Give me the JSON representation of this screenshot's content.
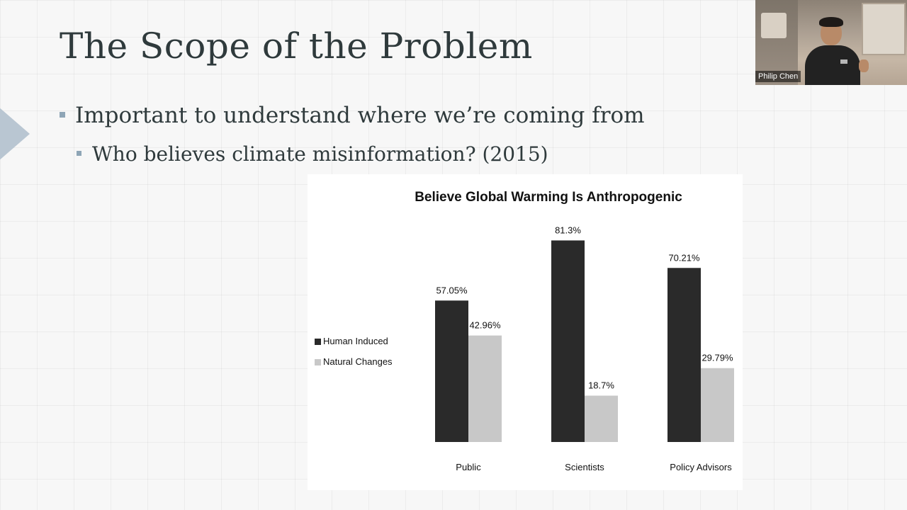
{
  "slide": {
    "title": "The Scope of the Problem",
    "bullets": [
      "Important to understand where we’re coming from",
      "Who believes climate misinformation? (2015)"
    ]
  },
  "video": {
    "participant_name": "Philip Chen"
  },
  "chart_data": {
    "type": "bar",
    "title": "Believe Global Warming Is Anthropogenic",
    "categories": [
      "Public",
      "Scientists",
      "Policy Advisors"
    ],
    "series": [
      {
        "name": "Human Induced",
        "values": [
          57.05,
          81.3,
          70.21
        ],
        "labels": [
          "57.05%",
          "81.3%",
          "70.21%"
        ],
        "color": "#2a2a2a"
      },
      {
        "name": "Natural Changes",
        "values": [
          42.96,
          18.7,
          29.79
        ],
        "labels": [
          "42.96%",
          "18.7%",
          "29.79%"
        ],
        "color": "#c8c8c8"
      }
    ],
    "ylim": [
      0,
      100
    ],
    "grid": false,
    "legend_position": "left"
  }
}
